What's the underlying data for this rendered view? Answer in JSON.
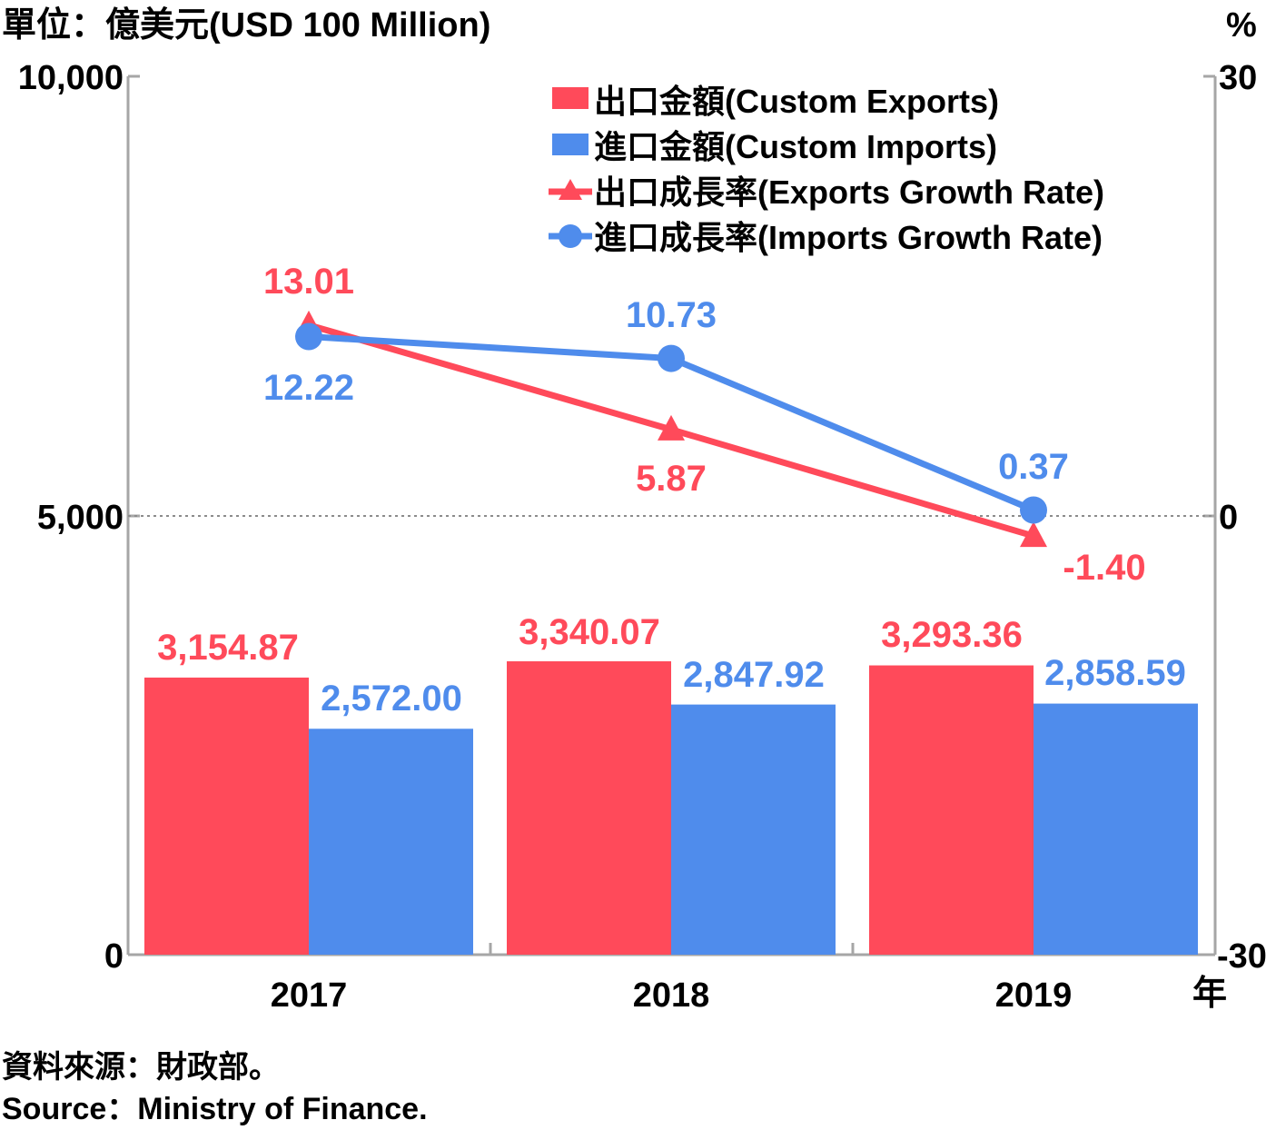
{
  "chart_data": {
    "type": "bar",
    "title": "",
    "left_unit": "單位：億美元(USD 100 Million)",
    "right_unit": "%",
    "xlabel": "年",
    "categories": [
      "2017",
      "2018",
      "2019"
    ],
    "y_left": {
      "ylim": [
        0,
        10000
      ],
      "ticks": [
        "0",
        "5,000",
        "10,000"
      ]
    },
    "y_right": {
      "ylim": [
        -30,
        30
      ],
      "ticks": [
        "-30",
        "0",
        "30"
      ]
    },
    "bar_series": [
      {
        "name": "出口金額(Custom Exports)",
        "values": [
          3154.87,
          3340.07,
          3293.36
        ],
        "labels": [
          "3,154.87",
          "3,340.07",
          "3,293.36"
        ],
        "color": "#ff4a5a"
      },
      {
        "name": "進口金額(Custom Imports)",
        "values": [
          2572.0,
          2847.92,
          2858.59
        ],
        "labels": [
          "2,572.00",
          "2,847.92",
          "2,858.59"
        ],
        "color": "#4f8cec"
      }
    ],
    "line_series": [
      {
        "name": "出口成長率(Exports Growth Rate)",
        "values": [
          13.01,
          5.87,
          -1.4
        ],
        "labels": [
          "13.01",
          "5.87",
          "-1.40"
        ],
        "color": "#ff4a5a",
        "marker": "triangle"
      },
      {
        "name": "進口成長率(Imports Growth Rate)",
        "values": [
          12.22,
          10.73,
          0.37
        ],
        "labels": [
          "12.22",
          "10.73",
          "0.37"
        ],
        "color": "#4f8cec",
        "marker": "circle"
      }
    ],
    "legend_position": "top-right",
    "grid": "dotted line at right-axis zero"
  },
  "source": {
    "zh": "資料來源：財政部。",
    "en": "Source：Ministry of Finance."
  }
}
